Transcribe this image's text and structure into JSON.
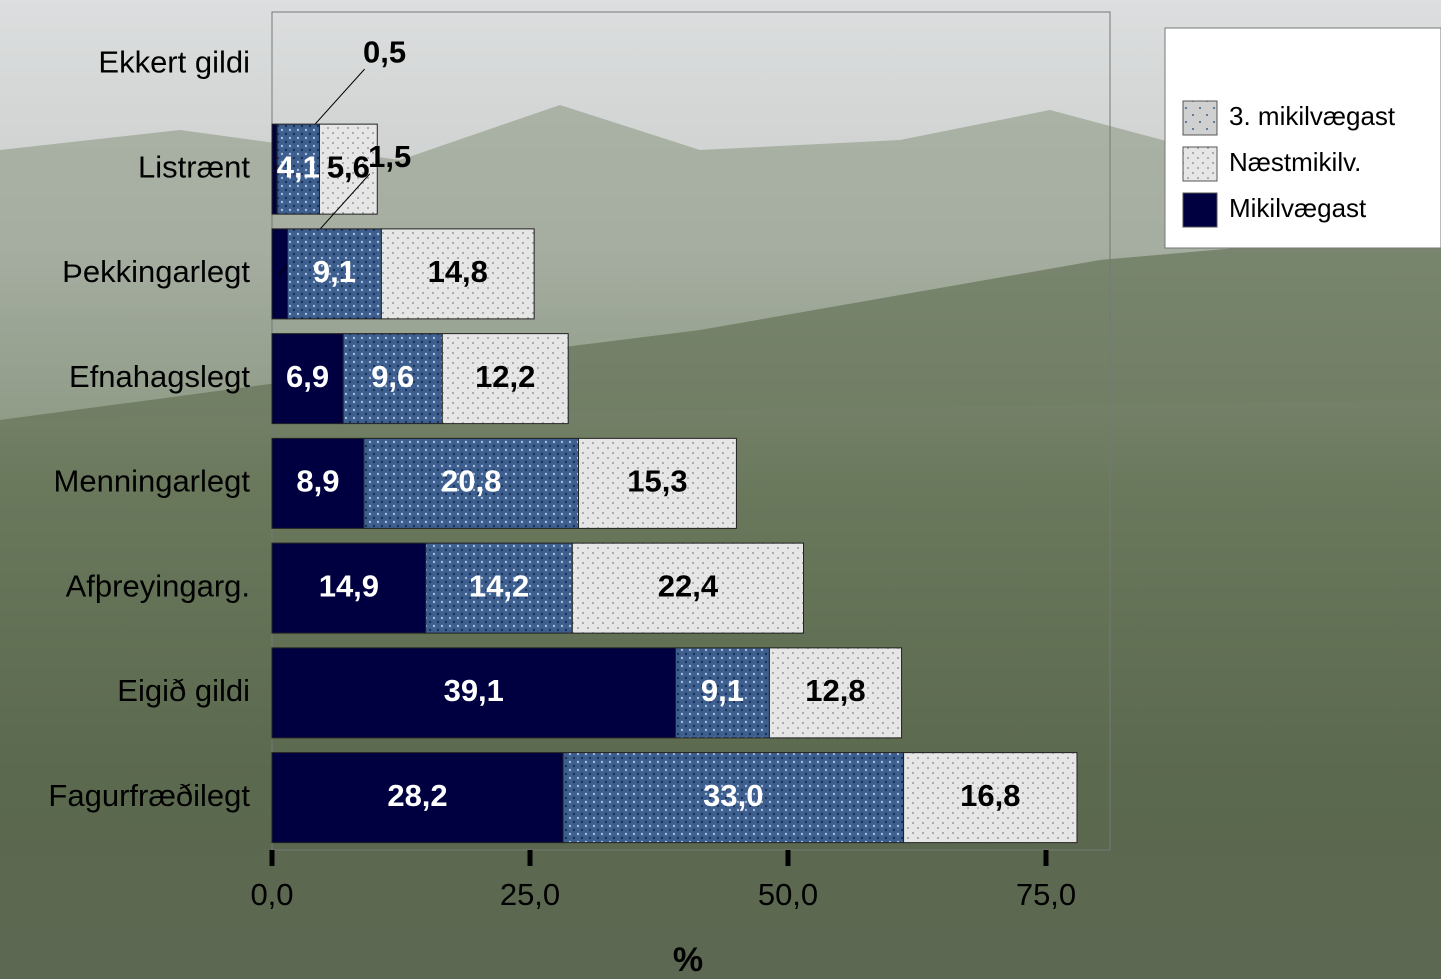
{
  "chart_data": {
    "type": "stacked-bar-horizontal",
    "categories": [
      "Ekkert gildi",
      "Listrænt",
      "Þekkingarlegt",
      "Efnahagslegt",
      "Menningarlegt",
      "Afþreyingarg.",
      "Eigið gildi",
      "Fagurfræðilegt"
    ],
    "series": [
      {
        "name": "Mikilvægast",
        "color": "#000040",
        "values": [
          null,
          0.5,
          1.5,
          6.9,
          8.9,
          14.9,
          39.1,
          28.2
        ],
        "value_labels": [
          null,
          "0,5",
          "1,5",
          "6,9",
          "8,9",
          "14,9",
          "39,1",
          "28,2"
        ]
      },
      {
        "name": "Næstmikilv.",
        "color": "#3d5f8f",
        "values": [
          null,
          4.1,
          9.1,
          9.6,
          20.8,
          14.2,
          9.1,
          33.0
        ],
        "value_labels": [
          null,
          "4,1",
          "9,1",
          "9,6",
          "20,8",
          "14,2",
          "9,1",
          "33,0"
        ]
      },
      {
        "name": "3. mikilvægast",
        "color": "#c8c8c8",
        "values": [
          null,
          5.6,
          14.8,
          12.2,
          15.3,
          22.4,
          12.8,
          16.8
        ],
        "value_labels": [
          null,
          "5,6",
          "14,8",
          "12,2",
          "15,3",
          "22,4",
          "12,8",
          "16,8"
        ]
      }
    ],
    "xlabel": "%",
    "xlim": [
      0,
      81.2
    ],
    "xticks": [
      {
        "value": 0,
        "label": "0,0"
      },
      {
        "value": 25,
        "label": "25,0"
      },
      {
        "value": 50,
        "label": "50,0"
      },
      {
        "value": 75,
        "label": "75,0"
      }
    ],
    "legend": "top-right"
  }
}
